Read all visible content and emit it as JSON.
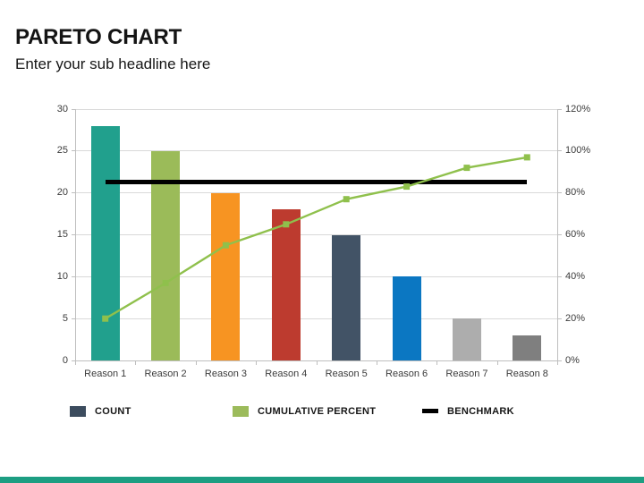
{
  "header": {
    "title": "PARETO CHART",
    "subtitle": "Enter your sub headline here"
  },
  "accent_bar_color": "#1D9E82",
  "chart_data": {
    "type": "pareto (bar + line combo)",
    "categories": [
      "Reason 1",
      "Reason 2",
      "Reason 3",
      "Reason 4",
      "Reason 5",
      "Reason 6",
      "Reason 7",
      "Reason 8"
    ],
    "series": [
      {
        "name": "COUNT",
        "type": "bar",
        "axis": "left",
        "values": [
          28,
          25,
          20,
          18,
          15,
          10,
          5,
          3
        ],
        "bar_colors": [
          "#21A08D",
          "#9BBB59",
          "#F79422",
          "#BD3B2F",
          "#425366",
          "#0B77C2",
          "#ADADAD",
          "#7F7F7F"
        ],
        "legend_color": "#3C4C5E"
      },
      {
        "name": "CUMULATIVE PERCENT",
        "type": "line",
        "axis": "right",
        "unit": "%",
        "values": [
          20,
          37,
          55,
          65,
          77,
          83,
          92,
          97
        ],
        "color": "#8FC04C",
        "legend_color": "#9CBB5B",
        "marker": "square"
      },
      {
        "name": "BENCHMARK",
        "type": "horizontal-line",
        "axis": "right",
        "unit": "%",
        "value": 85,
        "color": "#000000",
        "legend_color": "#000000"
      }
    ],
    "left_axis": {
      "min": 0,
      "max": 30,
      "step": 5,
      "tick_labels": [
        "0",
        "5",
        "10",
        "15",
        "20",
        "25",
        "30"
      ]
    },
    "right_axis": {
      "min": 0,
      "max": 120,
      "step": 20,
      "tick_labels": [
        "0%",
        "20%",
        "40%",
        "60%",
        "80%",
        "100%",
        "120%"
      ]
    },
    "grid": "horizontal",
    "legend_position": "bottom"
  }
}
